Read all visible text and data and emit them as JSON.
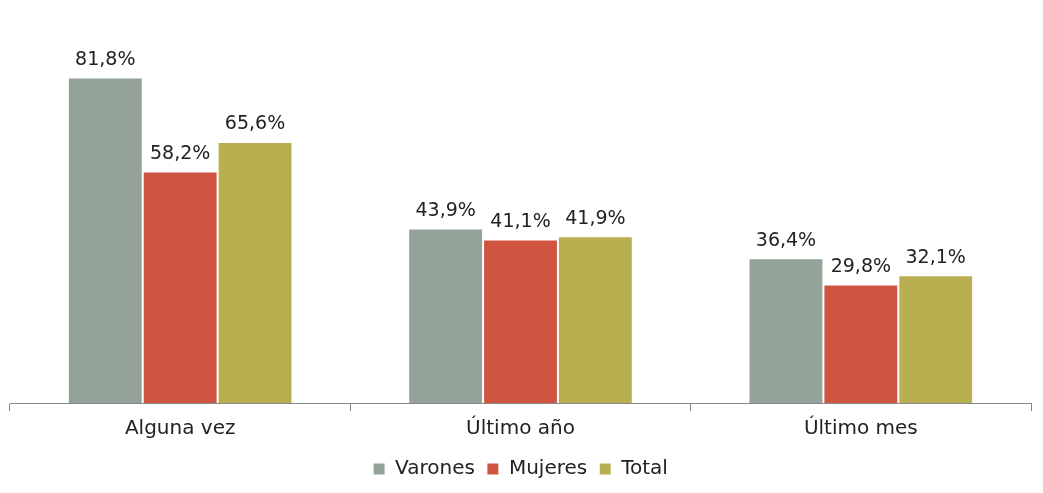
{
  "chart_data": {
    "type": "bar",
    "categories": [
      "Alguna vez",
      "Último año",
      "Último mes"
    ],
    "series": [
      {
        "name": "Varones",
        "color": "#93a397",
        "values": [
          81.8,
          43.9,
          36.4
        ],
        "value_labels": [
          "81,8%",
          "43,9%",
          "36,4%"
        ]
      },
      {
        "name": "Mujeres",
        "color": "#d05540",
        "values": [
          58.2,
          41.1,
          29.8
        ],
        "value_labels": [
          "58,2%",
          "41,1%",
          "29,8%"
        ]
      },
      {
        "name": "Total",
        "color": "#b8b050",
        "values": [
          65.6,
          41.9,
          32.1
        ],
        "value_labels": [
          "65,6%",
          "41,9%",
          "32,1%"
        ]
      }
    ],
    "legend": "bottom"
  }
}
